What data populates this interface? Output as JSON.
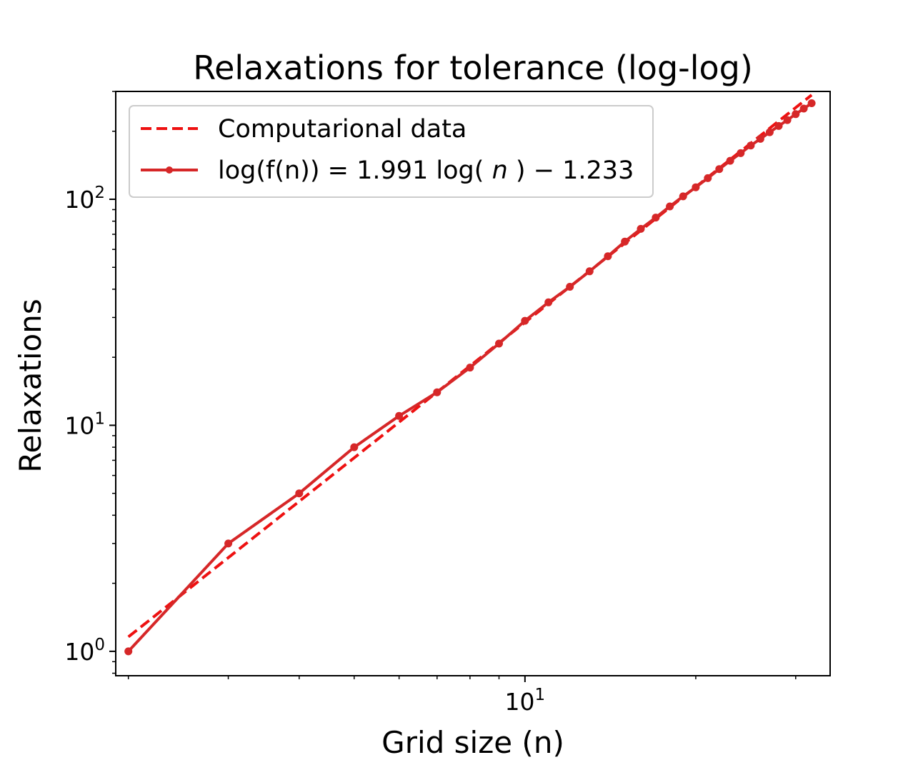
{
  "chart_data": {
    "type": "line",
    "title": "Relaxations for tolerance (log-log)",
    "xlabel": "Grid size (n)",
    "ylabel": "Relaxations",
    "xscale": "log",
    "yscale": "log",
    "xlim": [
      1.9,
      34.5
    ],
    "ylim": [
      0.78,
      300
    ],
    "x_major_ticks": [
      {
        "value": 10,
        "base": "10",
        "exp": "1"
      }
    ],
    "y_major_ticks": [
      {
        "value": 1,
        "base": "10",
        "exp": "0"
      },
      {
        "value": 10,
        "base": "10",
        "exp": "1"
      },
      {
        "value": 100,
        "base": "10",
        "exp": "2"
      }
    ],
    "grid": false,
    "legend_position": "upper-left",
    "series": [
      {
        "name": "Computarional data",
        "style": "dashed",
        "color": "#ee1111",
        "fit": {
          "slope": 1.991,
          "intercept": -1.233
        },
        "x_range": [
          2,
          32
        ]
      },
      {
        "name": "log(f(n)) = 1.991 log(n) − 1.233",
        "legend_parts": {
          "a": "log(f(n))",
          "op1": " = ",
          "b": "1.991 log(",
          "var": "n",
          "c": ")",
          "op2": " − ",
          "d": "1.233"
        },
        "style": "solid-markers",
        "color": "#d62728",
        "x": [
          2,
          3,
          4,
          5,
          6,
          7,
          8,
          9,
          10,
          11,
          12,
          13,
          14,
          15,
          16,
          17,
          18,
          19,
          20,
          21,
          22,
          23,
          24,
          25,
          26,
          27,
          28,
          29,
          30,
          31,
          32
        ],
        "y": [
          1,
          3,
          5,
          8,
          11,
          14,
          18,
          23,
          29,
          35,
          41,
          48,
          56,
          65,
          74,
          83,
          93,
          103,
          113,
          124,
          136,
          148,
          160,
          173,
          185,
          198,
          211,
          224,
          238,
          252,
          266
        ]
      }
    ]
  }
}
